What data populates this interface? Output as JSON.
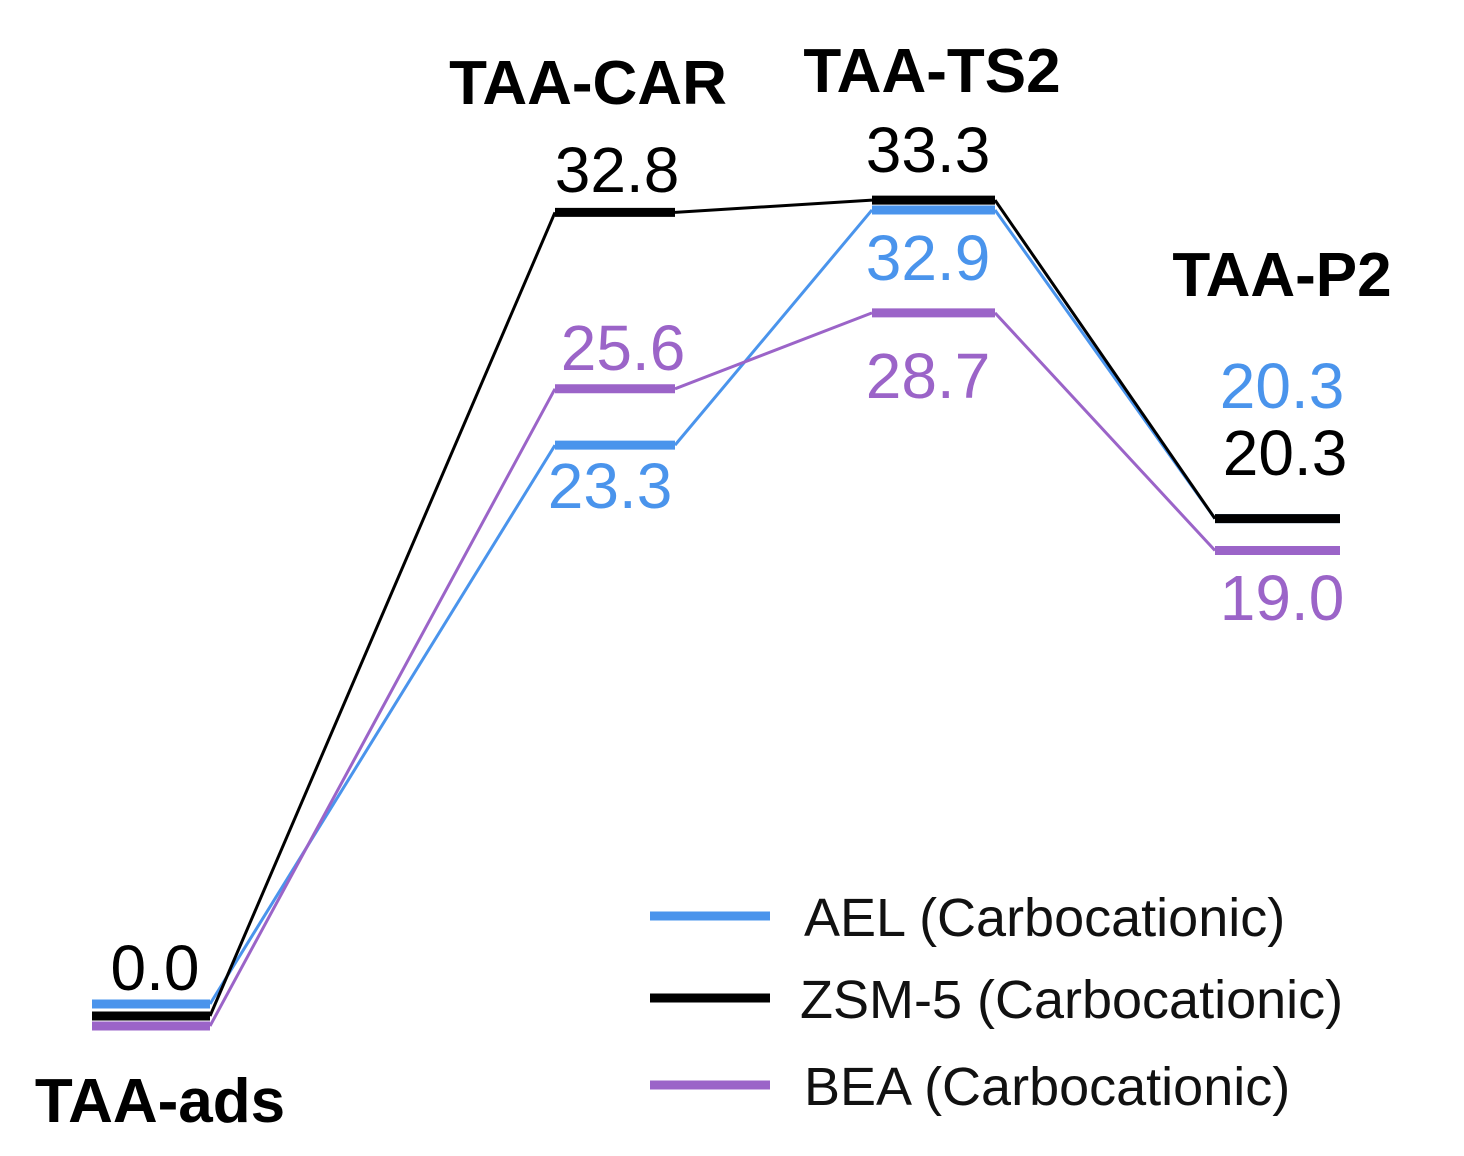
{
  "chart_data": {
    "type": "energy-profile",
    "title": "",
    "xlabel": "",
    "ylabel": "",
    "ylim": [
      0,
      34
    ],
    "states": [
      "TAA-ads",
      "TAA-CAR",
      "TAA-TS2",
      "TAA-P2"
    ],
    "series": [
      {
        "name": "AEL (Carbocationic)",
        "color": "#4a94ec",
        "values": [
          0.0,
          23.3,
          32.9,
          20.3
        ],
        "labels": [
          "",
          "23.3",
          "32.9",
          "20.3"
        ]
      },
      {
        "name": "ZSM-5 (Carbocationic)",
        "color": "#000000",
        "values": [
          0.0,
          32.8,
          33.3,
          20.3
        ],
        "labels": [
          "0.0",
          "32.8",
          "33.3",
          "20.3"
        ]
      },
      {
        "name": "BEA (Carbocationic)",
        "color": "#9b64c8",
        "values": [
          0.0,
          25.6,
          28.7,
          19.0
        ],
        "labels": [
          "",
          "25.6",
          "28.7",
          "19.0"
        ]
      }
    ]
  }
}
